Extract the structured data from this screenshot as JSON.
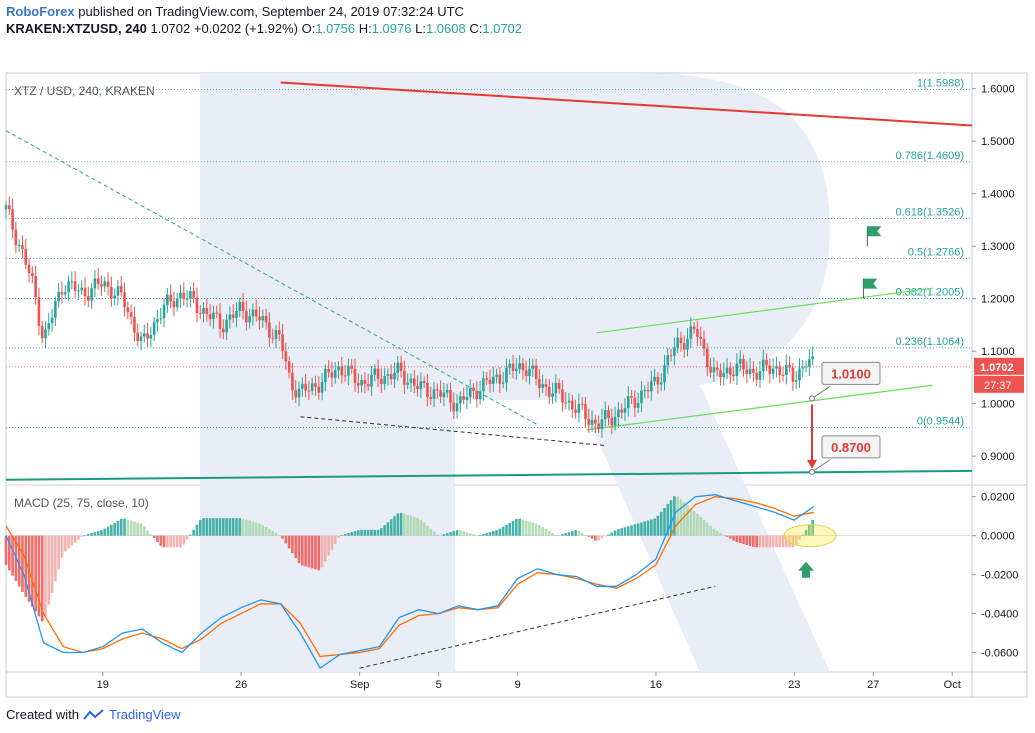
{
  "header": {
    "brand": "RoboForex",
    "published": "published on TradingView.com, September 24, 2019 07:32:24 UTC",
    "symbol": "KRAKEN:XTZUSD, 240",
    "last": "1.0702",
    "change": "+0.0202 (+1.92%)",
    "o_label": "O:",
    "o_value": "1.0756",
    "h_label": "H:",
    "h_value": "1.0976",
    "l_label": "L:",
    "l_value": "1.0608",
    "c_label": "C:",
    "c_value": "1.0702"
  },
  "footer": {
    "created_with": "Created with",
    "brand": "TradingView"
  },
  "colors": {
    "up": "#26a69a",
    "down": "#ef5350",
    "grid_fib": "#26a69a",
    "red_line": "#e53935",
    "green_channel": "#66dd55",
    "macd_line": "#2196f3",
    "signal_line": "#ff6d00",
    "hist_up": "#26a69a",
    "hist_down": "#ef5350",
    "watermark": "#e9edf5"
  },
  "chart_data": [
    {
      "type": "line",
      "title": "XTZ / USD, 240, KRAKEN",
      "price_axis": {
        "ticks": [
          "1.6000",
          "1.5000",
          "1.4000",
          "1.3000",
          "1.2000",
          "1.1000",
          "1.0000",
          "0.9000"
        ],
        "tick_values": [
          1.6,
          1.5,
          1.4,
          1.3,
          1.2,
          1.1,
          1.0,
          0.9
        ],
        "ylim": [
          0.845,
          1.63
        ],
        "last_price_label": "1.0702",
        "countdown_label": "27:37"
      },
      "time_axis": {
        "labels": [
          "19",
          "26",
          "Sep",
          "5",
          "9",
          "16",
          "23",
          "27",
          "Oct"
        ],
        "label_days": [
          19,
          26,
          32,
          36,
          40,
          47,
          54,
          58,
          62
        ],
        "xlim": [
          14.1,
          63
        ]
      },
      "fibonacci": [
        {
          "label": "1(1.5988)",
          "value": 1.5988
        },
        {
          "label": "0.786(1.4609)",
          "value": 1.4609
        },
        {
          "label": "0.618(1.3526)",
          "value": 1.3526
        },
        {
          "label": "0.5(1.2766)",
          "value": 1.2766
        },
        {
          "label": "0.382(1.2005)",
          "value": 1.2005
        },
        {
          "label": "0.236(1.1064)",
          "value": 1.1064
        },
        {
          "label": "0(0.9544)",
          "value": 0.9544
        }
      ],
      "targets": [
        {
          "label": "1.0100",
          "value": 1.01
        },
        {
          "label": "0.8700",
          "value": 0.87
        }
      ],
      "price_path": {
        "days": [
          14.1,
          15,
          15.5,
          16,
          17,
          18,
          19,
          20,
          21,
          22,
          23,
          24,
          25,
          26,
          27,
          28,
          28.5,
          29,
          30,
          31,
          32,
          33,
          34,
          35,
          36,
          37,
          38,
          39,
          40,
          40.5,
          41,
          42,
          43,
          44,
          45,
          46,
          47,
          48,
          49,
          50,
          51,
          52,
          53,
          54,
          54.6,
          55
        ],
        "values": [
          1.37,
          1.28,
          1.22,
          1.12,
          1.23,
          1.21,
          1.23,
          1.2,
          1.11,
          1.18,
          1.21,
          1.18,
          1.15,
          1.18,
          1.16,
          1.12,
          1.04,
          1.02,
          1.04,
          1.07,
          1.04,
          1.05,
          1.06,
          1.03,
          1.02,
          1.0,
          1.03,
          1.05,
          1.07,
          1.07,
          1.04,
          1.02,
          0.99,
          0.96,
          0.98,
          1.01,
          1.04,
          1.11,
          1.14,
          1.05,
          1.07,
          1.06,
          1.07,
          1.05,
          1.08,
          1.07
        ]
      },
      "macd": {
        "title": "MACD (25, 75, close, 10)",
        "ticks": [
          "0.0200",
          "0.0000",
          "-0.0200",
          "-0.0400",
          "-0.0600"
        ],
        "tick_values": [
          0.02,
          0.0,
          -0.02,
          -0.04,
          -0.06
        ],
        "ylim": [
          -0.07,
          0.026
        ],
        "days": [
          14.1,
          15,
          16,
          17,
          18,
          19,
          20,
          21,
          22,
          23,
          24,
          25,
          26,
          27,
          28,
          29,
          30,
          31,
          32,
          33,
          34,
          35,
          36,
          37,
          38,
          39,
          40,
          41,
          42,
          43,
          44,
          45,
          46,
          47,
          48,
          49,
          50,
          51,
          52,
          53,
          54,
          55
        ],
        "macd_line": [
          0.0,
          -0.02,
          -0.055,
          -0.06,
          -0.06,
          -0.057,
          -0.05,
          -0.048,
          -0.055,
          -0.06,
          -0.05,
          -0.042,
          -0.037,
          -0.033,
          -0.035,
          -0.05,
          -0.068,
          -0.061,
          -0.059,
          -0.057,
          -0.042,
          -0.038,
          -0.04,
          -0.036,
          -0.038,
          -0.036,
          -0.022,
          -0.017,
          -0.02,
          -0.021,
          -0.026,
          -0.026,
          -0.02,
          -0.012,
          0.012,
          0.02,
          0.021,
          0.018,
          0.015,
          0.012,
          0.008,
          0.015
        ],
        "signal_line": [
          0.005,
          -0.01,
          -0.04,
          -0.057,
          -0.06,
          -0.058,
          -0.053,
          -0.05,
          -0.053,
          -0.058,
          -0.053,
          -0.045,
          -0.04,
          -0.035,
          -0.035,
          -0.045,
          -0.062,
          -0.061,
          -0.06,
          -0.058,
          -0.046,
          -0.041,
          -0.04,
          -0.037,
          -0.038,
          -0.037,
          -0.025,
          -0.019,
          -0.02,
          -0.022,
          -0.025,
          -0.027,
          -0.022,
          -0.015,
          0.005,
          0.016,
          0.02,
          0.019,
          0.017,
          0.014,
          0.01,
          0.012
        ]
      }
    }
  ]
}
